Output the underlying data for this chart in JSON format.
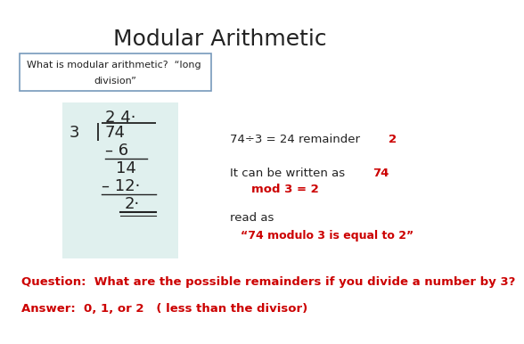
{
  "title": "Modular Arithmetic",
  "title_fontsize": 18,
  "title_color": "#222222",
  "bg_color": "#ffffff",
  "box_text_line1": "What is modular arithmetic?  “long",
  "box_text_line2": "division”",
  "box_border_color": "#7799bb",
  "long_div_bg": "#e0f0ee",
  "question_text": "Question:  What are the possible remainders if you divide a number by 3?",
  "answer_text": "Answer:  0, 1, or 2   ( less than the divisor)",
  "qa_color": "#cc0000",
  "qa_fontsize": 9.5
}
